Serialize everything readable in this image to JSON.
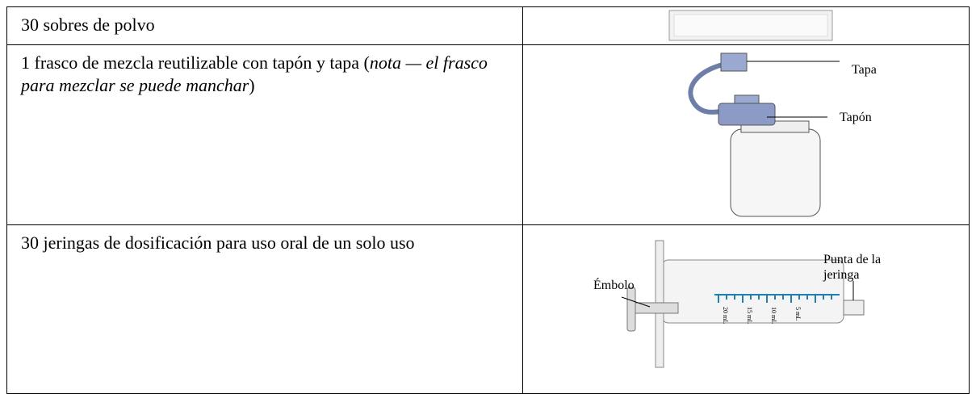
{
  "table": {
    "rows": [
      {
        "text": "30 sobres de polvo"
      },
      {
        "text": "1 frasco de mezcla reutilizable con tapón y tapa",
        "note_open": "(",
        "note": "nota — el frasco para mezclar se puede manchar",
        "note_close": ")",
        "labels": [
          "Tapa",
          "Tapón"
        ]
      },
      {
        "text": "30 jeringas de dosificación para uso oral de un solo uso",
        "labels": [
          "Émbolo"
        ],
        "tip_label": [
          "Punta de la",
          "jeringa"
        ],
        "scale": [
          "20 mL",
          "15 mL",
          "10 mL",
          "5 mL"
        ]
      }
    ]
  }
}
